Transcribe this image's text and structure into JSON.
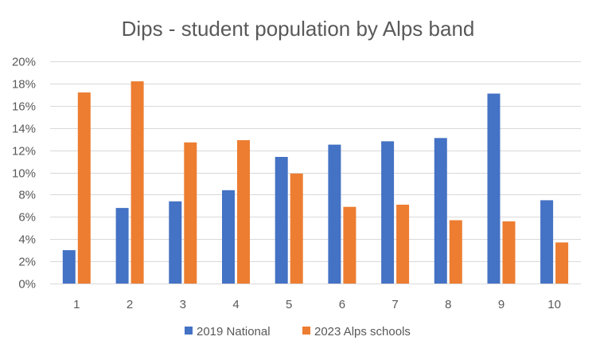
{
  "chart_data": {
    "type": "bar",
    "title": "Dips - student population by Alps band",
    "xlabel": "",
    "ylabel": "",
    "categories": [
      "1",
      "2",
      "3",
      "4",
      "5",
      "6",
      "7",
      "8",
      "9",
      "10"
    ],
    "ylim": [
      0,
      20
    ],
    "y_ticks": [
      "0%",
      "2%",
      "4%",
      "6%",
      "8%",
      "10%",
      "12%",
      "14%",
      "16%",
      "18%",
      "20%"
    ],
    "y_unit": "%",
    "grid": true,
    "legend_position": "bottom",
    "series": [
      {
        "name": "2019 National",
        "color": "#4472C4",
        "values": [
          3.0,
          6.8,
          7.4,
          8.4,
          11.4,
          12.5,
          12.8,
          13.1,
          17.1,
          7.5
        ]
      },
      {
        "name": "2023 Alps schools",
        "color": "#ED7D31",
        "values": [
          17.2,
          18.2,
          12.7,
          12.9,
          9.9,
          6.9,
          7.1,
          5.7,
          5.6,
          3.7
        ]
      }
    ]
  }
}
